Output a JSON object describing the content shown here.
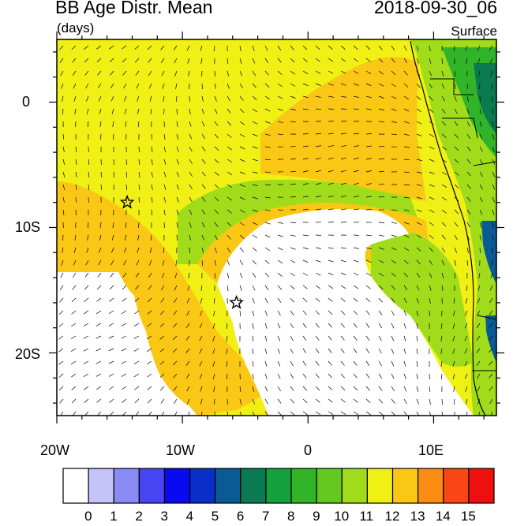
{
  "title": "BB Age Distr. Mean",
  "units": "(days)",
  "datetime": "2018-09-30_06",
  "level": "Surface",
  "axes": {
    "x_ticks": [
      "20W",
      "10W",
      "0",
      "10E"
    ],
    "y_ticks": [
      "0",
      "10S",
      "20S"
    ]
  },
  "colorbar": {
    "labels": [
      "0",
      "1",
      "2",
      "3",
      "4",
      "5",
      "6",
      "7",
      "8",
      "9",
      "10",
      "11",
      "12",
      "13",
      "14",
      "15"
    ],
    "colors": [
      "#ffffff",
      "#c4c4fa",
      "#8a8af5",
      "#4646f5",
      "#0a0af0",
      "#0a2ec8",
      "#0a5a96",
      "#0a7a50",
      "#14a03c",
      "#32b428",
      "#64c81e",
      "#a0dc19",
      "#f0f014",
      "#fac814",
      "#fa8c14",
      "#fa4614",
      "#f00f0f"
    ]
  },
  "markers": [
    {
      "name": "site-ascension",
      "lon": -14.4,
      "lat": -8.0
    },
    {
      "name": "site-st-helena",
      "lon": -5.7,
      "lat": -16.0
    }
  ]
}
